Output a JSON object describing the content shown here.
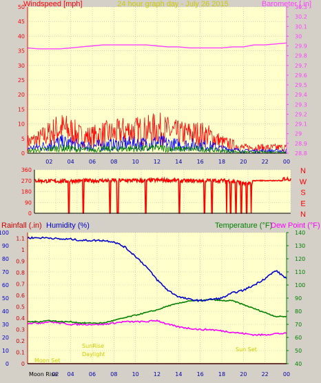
{
  "top_panel": {
    "left_title": "Windspeed [mph]",
    "center_title": "24 hour graph day - July 26 2015",
    "right_title": "Barometer [.in]",
    "windspeed_ticks": [
      "0",
      "5",
      "10",
      "15",
      "20",
      "25",
      "30",
      "35",
      "40",
      "45",
      "50"
    ],
    "barometer_ticks": [
      "28.8",
      "28.9",
      "29",
      "29.1",
      "29.2",
      "29.3",
      "29.4",
      "29.5",
      "29.6",
      "29.7",
      "29.8",
      "29.9",
      "30",
      "30.1",
      "30.2",
      "30.3"
    ],
    "hour_ticks": [
      "02",
      "04",
      "06",
      "08",
      "10",
      "12",
      "14",
      "16",
      "18",
      "20",
      "22",
      "00"
    ]
  },
  "mid_panel": {
    "direction_ticks": [
      "0",
      "90",
      "180",
      "270",
      "360"
    ],
    "compass": [
      "N",
      "W",
      "S",
      "E",
      "N"
    ]
  },
  "bottom_panel": {
    "rain_title": "Rainfall (.in)",
    "humidity_title": "Humidity (%)",
    "temp_title": "Temperature (°F)",
    "dew_title": "Dew Point (°F)",
    "rain_ticks": [
      "0",
      "0.1",
      "0.2",
      "0.3",
      "0.4",
      "0.5",
      "0.6",
      "0.7",
      "0.8",
      "0.9",
      "1",
      "1.1"
    ],
    "humidity_ticks": [
      "0",
      "10",
      "20",
      "30",
      "40",
      "50",
      "60",
      "70",
      "80",
      "90",
      "100"
    ],
    "temp_ticks": [
      "40",
      "50",
      "60",
      "70",
      "80",
      "90",
      "100",
      "110",
      "120",
      "130",
      "140"
    ],
    "hour_ticks": [
      "02",
      "04",
      "06",
      "08",
      "10",
      "12",
      "14",
      "16",
      "18",
      "20",
      "22",
      "00"
    ],
    "moon_rise": "Moon Rise",
    "events": [
      "Moon Set",
      "SunRise",
      "Daylight",
      "Sun Set"
    ]
  },
  "colors": {
    "background": "#d4d0c8",
    "plot": "#ffffcc",
    "grid": "#b8b8a8",
    "windspeed": "#ff0000",
    "windgust": "#0000ff",
    "windavg": "#008000",
    "barometer": "#ff40ff",
    "direction": "#ff0000",
    "humidity": "#0000cc",
    "temperature": "#008000",
    "dewpoint": "#ff00ff",
    "rain": "#cc0000",
    "event_text": "#cccc00"
  },
  "chart_data": [
    {
      "type": "line",
      "title": "24 hour graph day - July 26 2015",
      "x_unit": "hour",
      "xlim": [
        0,
        24
      ],
      "series": [
        {
          "name": "Windspeed [mph]",
          "axis": "left",
          "ylim": [
            0,
            50
          ],
          "x": [
            0,
            1,
            2,
            3,
            4,
            5,
            6,
            7,
            8,
            9,
            10,
            11,
            12,
            13,
            14,
            15,
            16,
            17,
            18,
            19,
            20,
            21,
            22,
            23,
            24
          ],
          "y": [
            4,
            5,
            7,
            9,
            8,
            6,
            6,
            7,
            7,
            8,
            8,
            8,
            9,
            8,
            7,
            7,
            7,
            6,
            4,
            3,
            2,
            2,
            2,
            2,
            2
          ]
        },
        {
          "name": "Barometer [.in]",
          "axis": "right",
          "ylim": [
            28.8,
            30.3
          ],
          "x": [
            0,
            1,
            2,
            3,
            4,
            5,
            6,
            7,
            8,
            9,
            10,
            11,
            12,
            13,
            14,
            15,
            16,
            17,
            18,
            19,
            20,
            21,
            22,
            23,
            24
          ],
          "y": [
            29.88,
            29.87,
            29.87,
            29.87,
            29.88,
            29.89,
            29.9,
            29.91,
            29.91,
            29.91,
            29.91,
            29.91,
            29.9,
            29.89,
            29.89,
            29.88,
            29.88,
            29.88,
            29.88,
            29.89,
            29.89,
            29.91,
            29.91,
            29.92,
            29.93
          ]
        }
      ]
    },
    {
      "type": "line",
      "title": "",
      "series": [
        {
          "name": "Wind direction",
          "ylim": [
            0,
            360
          ],
          "x": [
            0,
            2,
            4,
            6,
            8,
            10,
            12,
            14,
            16,
            18,
            19,
            20,
            22,
            23,
            24
          ],
          "y": [
            270,
            265,
            268,
            270,
            272,
            270,
            275,
            268,
            270,
            270,
            260,
            240,
            280,
            290,
            280
          ]
        }
      ]
    },
    {
      "type": "line",
      "title": "",
      "series": [
        {
          "name": "Humidity (%)",
          "axis": "humidity",
          "ylim": [
            0,
            100
          ],
          "x": [
            0,
            1,
            2,
            3,
            4,
            5,
            6,
            7,
            8,
            9,
            10,
            11,
            12,
            13,
            14,
            15,
            16,
            17,
            18,
            19,
            20,
            21,
            22,
            23,
            24
          ],
          "y": [
            96,
            96,
            96,
            95,
            95,
            94,
            94,
            94,
            93,
            89,
            82,
            74,
            64,
            56,
            51,
            49,
            48,
            49,
            50,
            54,
            56,
            60,
            65,
            71,
            65
          ]
        },
        {
          "name": "Temperature (°F)",
          "axis": "temperature",
          "ylim": [
            40,
            140
          ],
          "x": [
            0,
            1,
            2,
            3,
            4,
            5,
            6,
            7,
            8,
            9,
            10,
            11,
            12,
            13,
            14,
            15,
            16,
            17,
            18,
            19,
            20,
            21,
            22,
            23,
            24
          ],
          "y": [
            72,
            72,
            73,
            72,
            72,
            71,
            71,
            71,
            73,
            75,
            77,
            79,
            81,
            84,
            86,
            88,
            88,
            89,
            88,
            88,
            85,
            82,
            79,
            76,
            76
          ]
        },
        {
          "name": "Dew Point (°F)",
          "axis": "temperature",
          "ylim": [
            40,
            140
          ],
          "x": [
            0,
            1,
            2,
            3,
            4,
            5,
            6,
            7,
            8,
            9,
            10,
            11,
            12,
            13,
            14,
            15,
            16,
            17,
            18,
            19,
            20,
            21,
            22,
            23,
            24
          ],
          "y": [
            71,
            71,
            72,
            71,
            70,
            70,
            70,
            70,
            71,
            72,
            72,
            72,
            73,
            70,
            68,
            67,
            66,
            66,
            65,
            64,
            63,
            62,
            62,
            63,
            63
          ]
        },
        {
          "name": "Rainfall (.in)",
          "axis": "rain",
          "ylim": [
            0,
            1.15
          ],
          "x": [
            0,
            4,
            8,
            12,
            16,
            20,
            24
          ],
          "y": [
            0,
            0,
            0,
            0,
            0,
            0,
            0
          ]
        }
      ]
    }
  ]
}
